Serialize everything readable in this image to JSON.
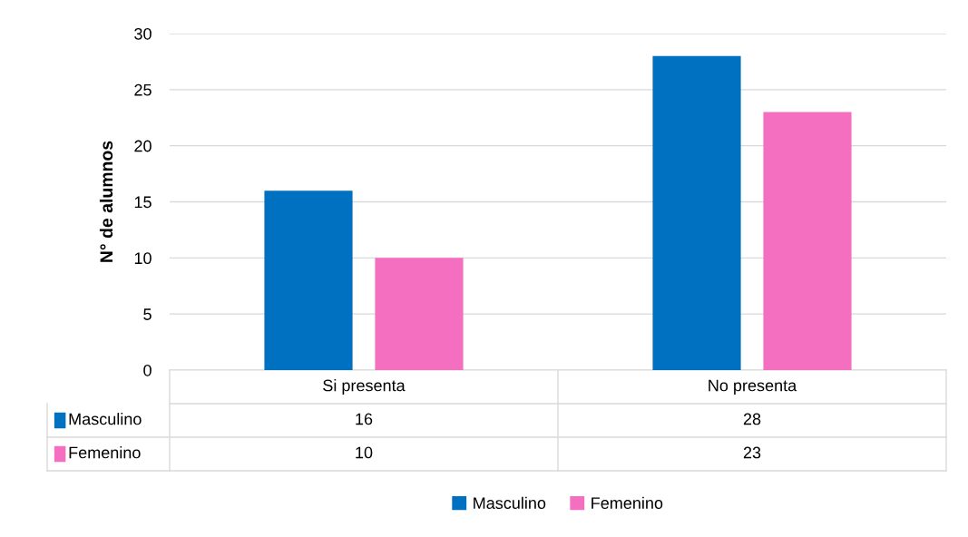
{
  "chart_data": {
    "type": "bar",
    "ylabel": "N° de alumnos",
    "categories": [
      "Si presenta",
      "No presenta"
    ],
    "series": [
      {
        "name": "Masculino",
        "color": "#0070c0",
        "values": [
          16,
          28
        ]
      },
      {
        "name": "Femenino",
        "color": "#f46fc0",
        "values": [
          10,
          23
        ]
      }
    ],
    "ylim": [
      0,
      30
    ],
    "yticks": [
      0,
      5,
      10,
      15,
      20,
      25,
      30
    ],
    "grid": "y",
    "legend": "bottom",
    "data_labels": true
  }
}
